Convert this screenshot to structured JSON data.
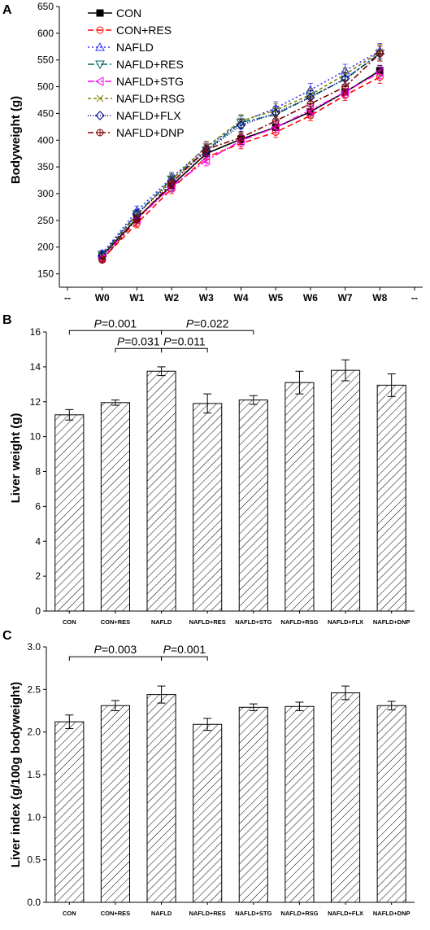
{
  "chart_data": [
    {
      "panel": "A",
      "type": "line",
      "ylabel": "Bodyweight (g)",
      "xlabel": "",
      "ylim": [
        125,
        650
      ],
      "yticks": [
        "150",
        "200",
        "250",
        "300",
        "350",
        "400",
        "450",
        "500",
        "550",
        "600",
        "650"
      ],
      "x": [
        "--",
        "W0",
        "W1",
        "W2",
        "W3",
        "W4",
        "W5",
        "W6",
        "W7",
        "W8",
        "--"
      ],
      "grid": false,
      "legend_position": "top-left",
      "series": [
        {
          "name": "CON",
          "color": "#000000",
          "dash": "",
          "marker": "filled-square",
          "values": [
            null,
            183,
            254,
            315,
            375,
            402,
            424,
            453,
            490,
            530,
            null
          ],
          "err": [
            null,
            5,
            8,
            10,
            10,
            10,
            10,
            10,
            10,
            10,
            null
          ]
        },
        {
          "name": "CON+RES",
          "color": "#ff0000",
          "dash": "7,4",
          "marker": "circle",
          "values": [
            null,
            178,
            244,
            309,
            368,
            394,
            415,
            446,
            484,
            518,
            null
          ],
          "err": [
            null,
            5,
            8,
            9,
            10,
            10,
            10,
            10,
            10,
            12,
            null
          ]
        },
        {
          "name": "NAFLD",
          "color": "#3030ff",
          "dash": "2,3",
          "marker": "triangle",
          "values": [
            null,
            188,
            268,
            330,
            386,
            434,
            460,
            494,
            530,
            567,
            null
          ],
          "err": [
            null,
            6,
            9,
            10,
            10,
            12,
            12,
            12,
            12,
            14,
            null
          ]
        },
        {
          "name": "NAFLD+RES",
          "color": "#006666",
          "dash": "8,3,2,3",
          "marker": "inverted-triangle",
          "values": [
            null,
            186,
            262,
            327,
            381,
            433,
            448,
            481,
            514,
            562,
            null
          ],
          "err": [
            null,
            6,
            8,
            10,
            10,
            12,
            12,
            12,
            12,
            14,
            null
          ]
        },
        {
          "name": "NAFLD+STG",
          "color": "#ff00ff",
          "dash": "8,3,2,3,2,3",
          "marker": "left-triangle",
          "values": [
            null,
            180,
            252,
            313,
            362,
            399,
            424,
            456,
            490,
            527,
            null
          ],
          "err": [
            null,
            5,
            8,
            10,
            10,
            10,
            10,
            10,
            10,
            12,
            null
          ]
        },
        {
          "name": "NAFLD+RSG",
          "color": "#808000",
          "dash": "4,3",
          "marker": "cross",
          "values": [
            null,
            184,
            260,
            326,
            388,
            436,
            456,
            485,
            523,
            565,
            null
          ],
          "err": [
            null,
            6,
            8,
            10,
            10,
            12,
            12,
            12,
            12,
            14,
            null
          ]
        },
        {
          "name": "NAFLD+FLX",
          "color": "#000080",
          "dash": "1,2",
          "marker": "diamond",
          "values": [
            null,
            185,
            262,
            322,
            380,
            428,
            451,
            480,
            515,
            562,
            null
          ],
          "err": [
            null,
            6,
            8,
            10,
            10,
            12,
            12,
            12,
            12,
            14,
            null
          ]
        },
        {
          "name": "NAFLD+DNP",
          "color": "#800000",
          "dash": "7,3,2,3",
          "marker": "circle-plus",
          "values": [
            null,
            176,
            252,
            320,
            383,
            405,
            436,
            468,
            500,
            562,
            null
          ],
          "err": [
            null,
            5,
            8,
            10,
            10,
            10,
            10,
            10,
            12,
            14,
            null
          ]
        }
      ]
    },
    {
      "panel": "B",
      "type": "bar",
      "ylabel": "Liver weight (g)",
      "xlabel": "",
      "ylim": [
        0,
        16
      ],
      "yticks": [
        "0",
        "2",
        "4",
        "6",
        "8",
        "10",
        "12",
        "14",
        "16"
      ],
      "categories": [
        "CON",
        "CON+RES",
        "NAFLD",
        "NAFLD+RES",
        "NAFLD+STG",
        "NAFLD+RSG",
        "NAFLD+FLX",
        "NAFLD+DNP"
      ],
      "values": [
        11.25,
        11.95,
        13.75,
        11.9,
        12.1,
        13.1,
        13.8,
        12.95
      ],
      "errors": [
        0.3,
        0.15,
        0.25,
        0.55,
        0.25,
        0.65,
        0.6,
        0.65
      ],
      "comparisons": [
        {
          "from": 0,
          "to": 2,
          "label": "=0.001",
          "level": 1
        },
        {
          "from": 1,
          "to": 2,
          "label": "=0.031",
          "level": 0
        },
        {
          "from": 2,
          "to": 3,
          "label": "=0.011",
          "level": 0
        },
        {
          "from": 2,
          "to": 4,
          "label": "=0.022",
          "level": 1
        }
      ]
    },
    {
      "panel": "C",
      "type": "bar",
      "ylabel": "Liver index (g/100g bodyweight)",
      "xlabel": "",
      "ylim": [
        0,
        3.0
      ],
      "yticks": [
        "0.0",
        "0.5",
        "1.0",
        "1.5",
        "2.0",
        "2.5",
        "3.0"
      ],
      "categories": [
        "CON",
        "CON+RES",
        "NAFLD",
        "NAFLD+RES",
        "NAFLD+STG",
        "NAFLD+RSG",
        "NAFLD+FLX",
        "NAFLD+DNP"
      ],
      "values": [
        2.12,
        2.31,
        2.44,
        2.09,
        2.29,
        2.3,
        2.46,
        2.31
      ],
      "errors": [
        0.08,
        0.06,
        0.1,
        0.07,
        0.04,
        0.05,
        0.08,
        0.05
      ],
      "comparisons": [
        {
          "from": 0,
          "to": 2,
          "label": "=0.003",
          "level": 1
        },
        {
          "from": 2,
          "to": 3,
          "label": "=0.001",
          "level": 1
        }
      ]
    }
  ],
  "p_symbol": "P"
}
